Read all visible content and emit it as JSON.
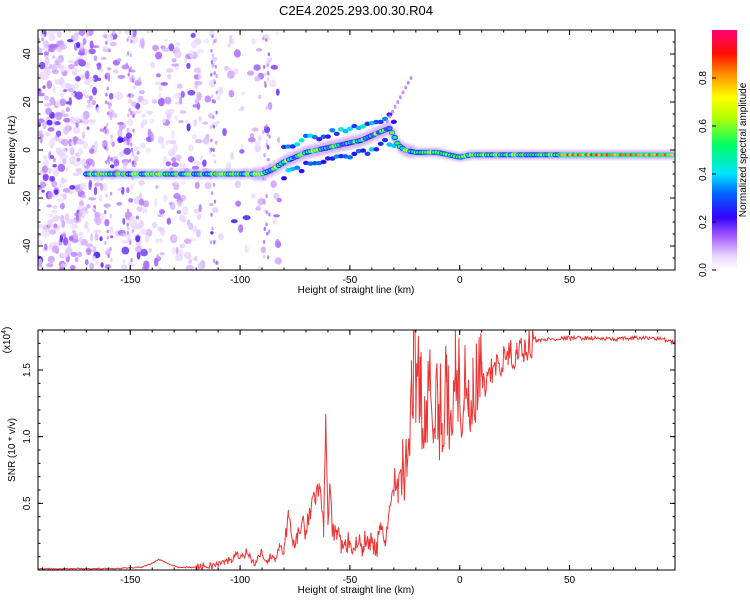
{
  "title": "C2E4.2025.293.00.30.R04",
  "colorbar": {
    "label": "Normalized spectral amplitude",
    "ticks": [
      "0.0",
      "0.2",
      "0.4",
      "0.6",
      "0.8"
    ],
    "tick_values": [
      0.0,
      0.2,
      0.4,
      0.6,
      0.8
    ],
    "range": [
      0,
      1
    ],
    "colors": [
      "#ffffff",
      "#d9b3ff",
      "#8b00ff",
      "#0000ff",
      "#00ffff",
      "#00ff66",
      "#ffff00",
      "#ff8800",
      "#ff0000",
      "#ff0080"
    ]
  },
  "chart_data": [
    {
      "type": "heatmap",
      "title": "C2E4.2025.293.00.30.R04",
      "xlabel": "Height of straight line (km)",
      "ylabel": "Frequency (Hz)",
      "xlim": [
        -192,
        98
      ],
      "ylim": [
        -50,
        50
      ],
      "x_ticks": [
        -150,
        -100,
        -50,
        0,
        50
      ],
      "x_tick_labels": [
        "-150",
        "-100",
        "-50",
        "0",
        "50"
      ],
      "y_ticks": [
        -40,
        -20,
        0,
        20,
        40
      ],
      "y_tick_labels": [
        "-40",
        "-20",
        "0",
        "20",
        "40"
      ],
      "ridge": {
        "x": [
          -168,
          -150,
          -130,
          -110,
          -95,
          -90,
          -85,
          -80,
          -75,
          -70,
          -65,
          -60,
          -55,
          -50,
          -45,
          -40,
          -35,
          -32,
          -30,
          -28,
          -25,
          -20,
          -15,
          -10,
          -5,
          0,
          5,
          10,
          20,
          30,
          40,
          50,
          60,
          70,
          80,
          90,
          97
        ],
        "y": [
          -10,
          -10,
          -10,
          -10,
          -10,
          -10,
          -8,
          -5,
          -3,
          -1,
          0,
          1,
          2,
          3,
          4,
          6,
          8,
          9,
          6,
          2,
          0,
          -1,
          -1,
          -1,
          -2,
          -3,
          -2,
          -2,
          -2,
          -2,
          -2,
          -2,
          -2,
          -2,
          -2,
          -2,
          -2
        ]
      }
    },
    {
      "type": "line",
      "xlabel": "Height of straight line (km)",
      "ylabel": "SNR (10 * v/v)",
      "multiplier_label": "(x10",
      "multiplier_exp": "4",
      "xlim": [
        -192,
        98
      ],
      "ylim": [
        0,
        1.8
      ],
      "x_ticks": [
        -150,
        -100,
        -50,
        0,
        50
      ],
      "x_tick_labels": [
        "-150",
        "-100",
        "-50",
        "0",
        "50"
      ],
      "y_ticks": [
        0.5,
        1.0,
        1.5
      ],
      "y_tick_labels": [
        "0.5",
        "1.0",
        "1.5"
      ],
      "series": [
        {
          "name": "SNR",
          "color": "#ee3333",
          "x": [
            -192,
            -160,
            -145,
            -140,
            -137,
            -133,
            -128,
            -120,
            -110,
            -104,
            -101,
            -99,
            -97,
            -95,
            -93,
            -90,
            -88,
            -86,
            -84,
            -82,
            -80,
            -78,
            -76,
            -74,
            -72,
            -70,
            -68,
            -66,
            -64,
            -62,
            -61,
            -60,
            -59,
            -58,
            -56,
            -54,
            -52,
            -50,
            -48,
            -46,
            -44,
            -42,
            -40,
            -38,
            -36,
            -34,
            -32,
            -30,
            -28,
            -26,
            -24,
            -22,
            -21,
            -20,
            -18,
            -16,
            -14,
            -12,
            -10,
            -8,
            -6,
            -4,
            -2,
            0,
            2,
            4,
            6,
            8,
            10,
            12,
            15,
            18,
            22,
            26,
            30,
            35,
            40,
            50,
            60,
            70,
            80,
            90,
            95,
            98
          ],
          "y": [
            0.01,
            0.01,
            0.02,
            0.05,
            0.08,
            0.05,
            0.02,
            0.02,
            0.04,
            0.08,
            0.12,
            0.1,
            0.14,
            0.08,
            0.05,
            0.14,
            0.07,
            0.1,
            0.06,
            0.2,
            0.12,
            0.45,
            0.2,
            0.28,
            0.35,
            0.3,
            0.42,
            0.55,
            0.65,
            0.32,
            1.17,
            0.4,
            0.62,
            0.25,
            0.3,
            0.2,
            0.18,
            0.22,
            0.15,
            0.2,
            0.18,
            0.25,
            0.2,
            0.15,
            0.3,
            0.22,
            0.45,
            0.6,
            0.5,
            0.85,
            0.7,
            1.45,
            1.82,
            1.35,
            1.6,
            1.0,
            1.35,
            0.95,
            1.3,
            1.1,
            1.4,
            1.2,
            1.5,
            1.4,
            1.28,
            1.15,
            1.25,
            1.32,
            1.45,
            1.35,
            1.5,
            1.55,
            1.6,
            1.62,
            1.68,
            1.72,
            1.73,
            1.74,
            1.74,
            1.73,
            1.74,
            1.74,
            1.72,
            1.7
          ]
        }
      ]
    }
  ]
}
